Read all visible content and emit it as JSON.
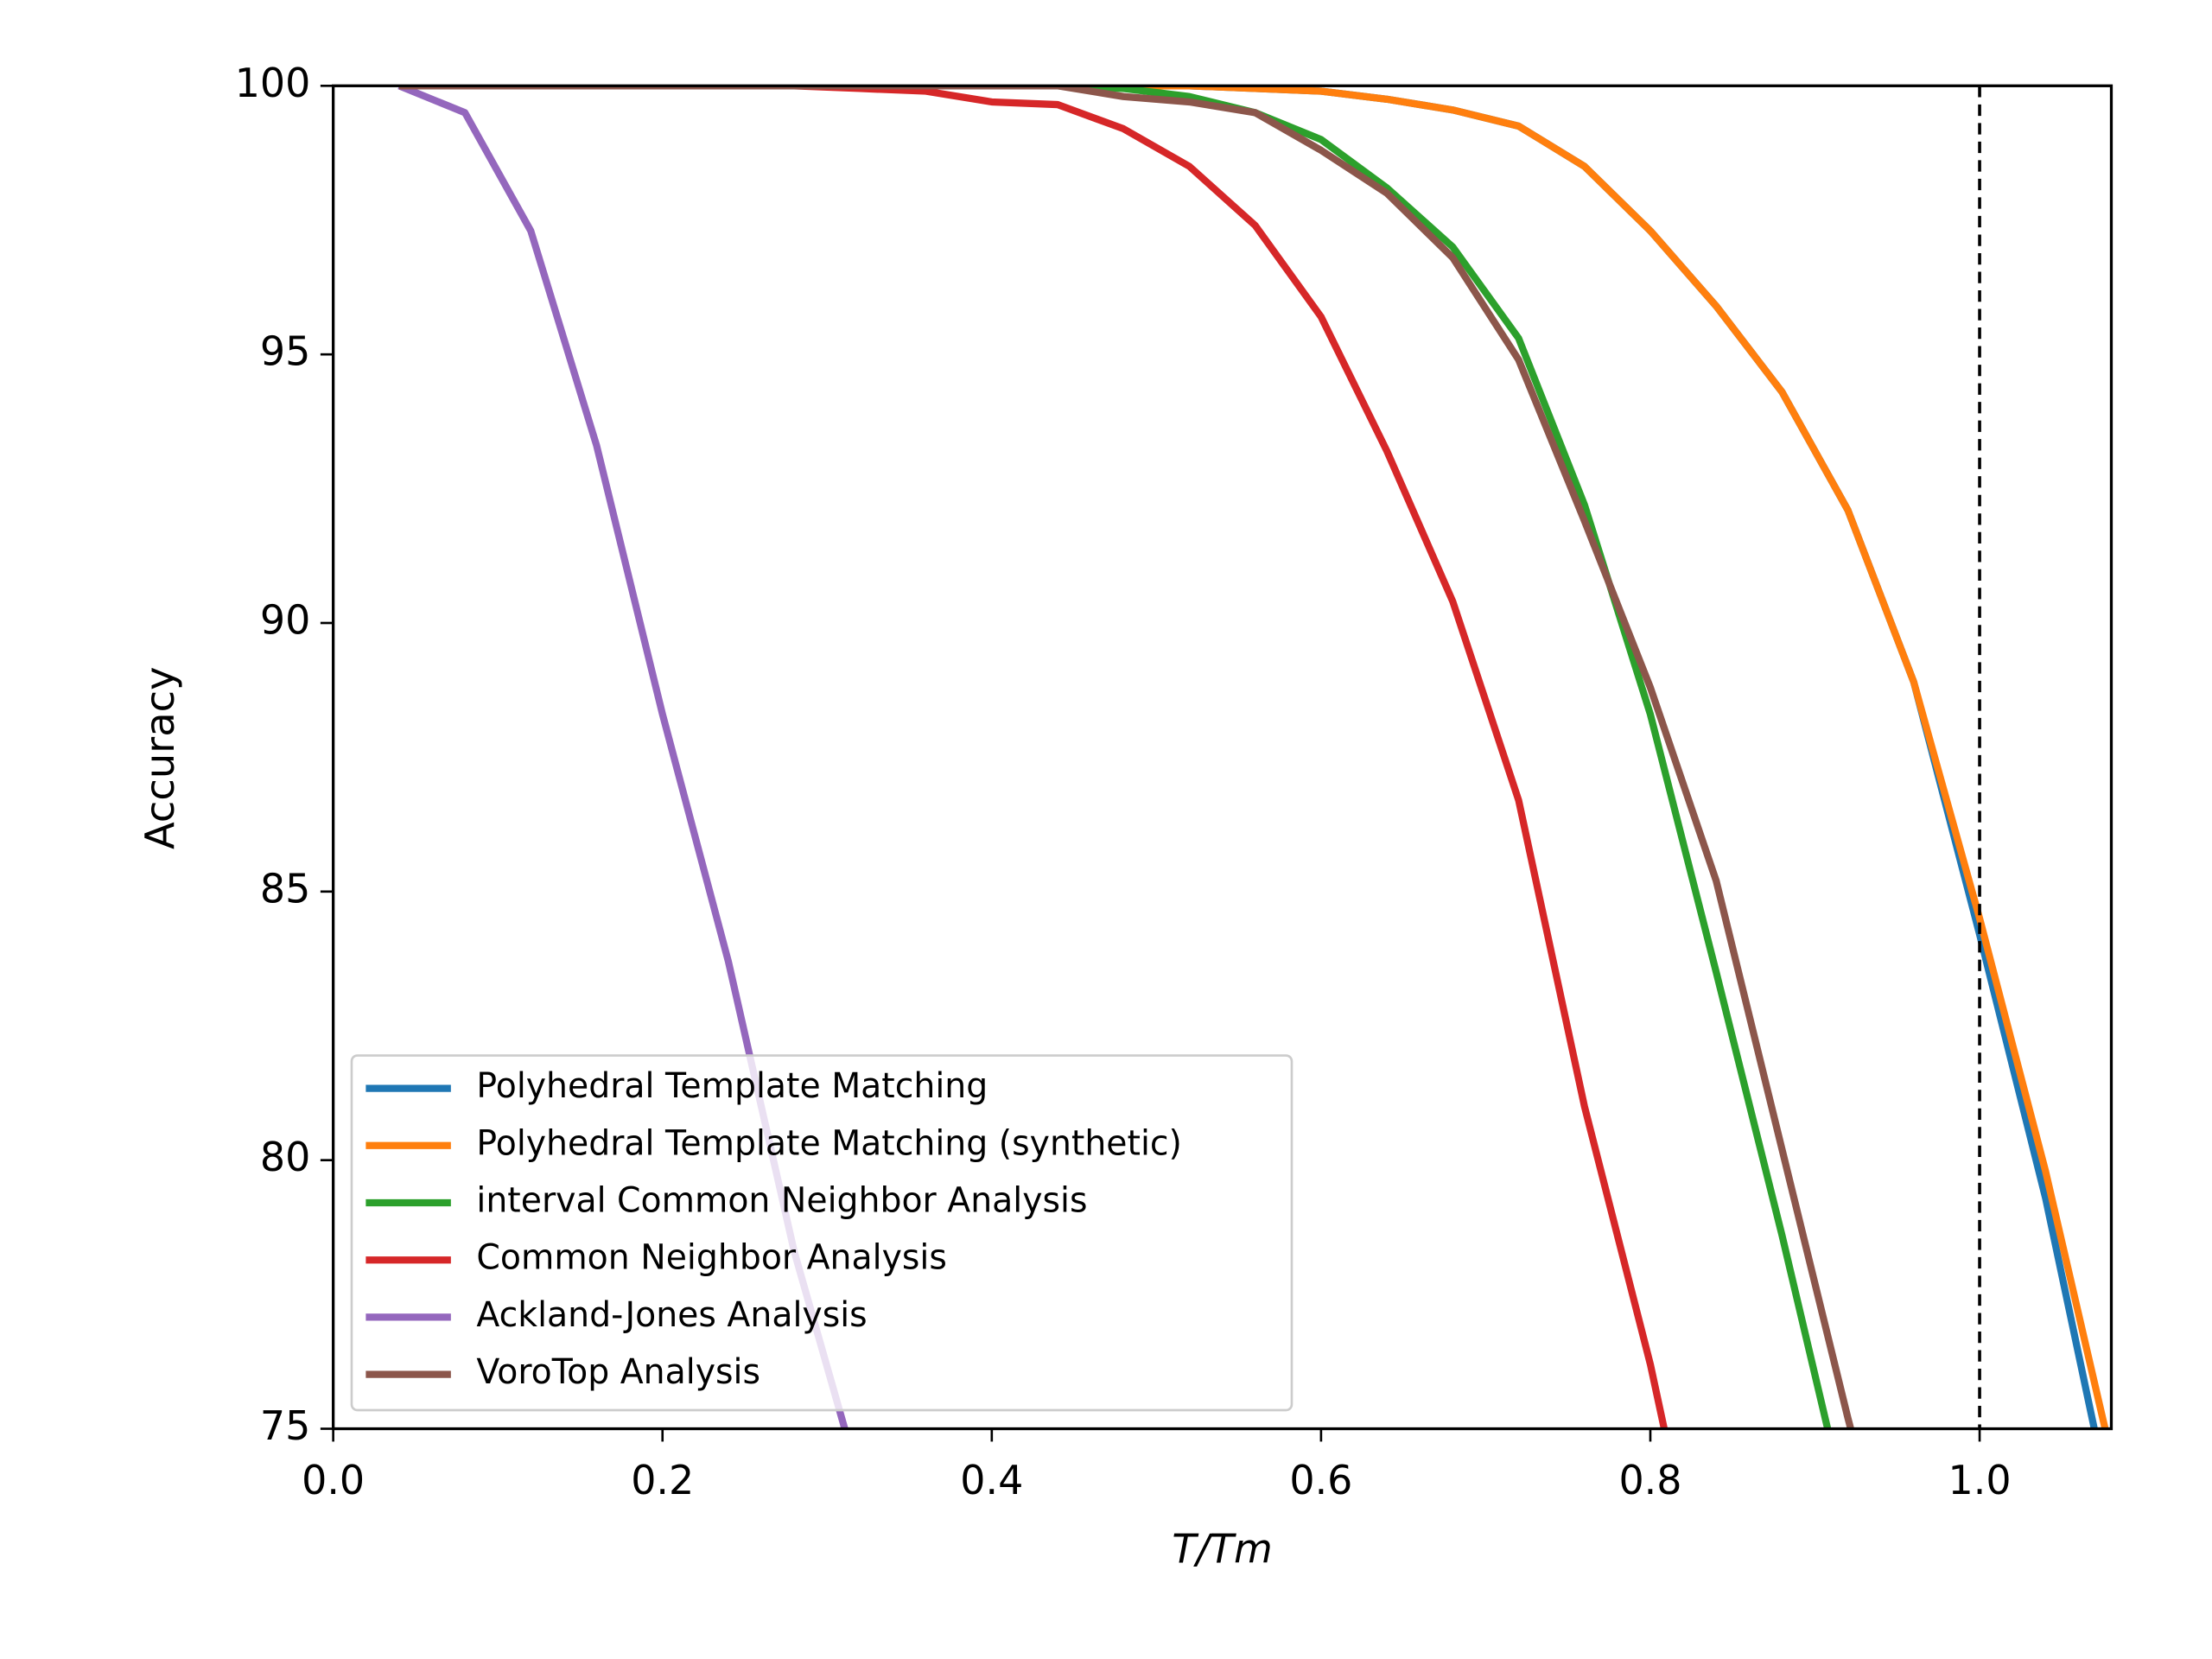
{
  "chart_data": {
    "type": "line",
    "x_label": "T/Tm",
    "y_label": "Accuracy",
    "x": [
      0.04,
      0.08,
      0.12,
      0.16,
      0.2,
      0.24,
      0.28,
      0.32,
      0.36,
      0.4,
      0.44,
      0.48,
      0.52,
      0.56,
      0.6,
      0.64,
      0.68,
      0.72,
      0.76,
      0.8,
      0.84,
      0.88,
      0.92,
      0.96,
      1.0,
      1.04,
      1.08
    ],
    "series": [
      {
        "name": "Polyhedral Template Matching",
        "color": "#1f77b4",
        "values": [
          100,
          100,
          100,
          100,
          100,
          100,
          100,
          100,
          100,
          100,
          100,
          100,
          100,
          99.95,
          99.9,
          99.75,
          99.55,
          99.25,
          98.5,
          97.3,
          95.9,
          94.3,
          92.1,
          88.9,
          84.2,
          79.3,
          73.5
        ]
      },
      {
        "name": "Polyhedral Template Matching (synthetic)",
        "color": "#ff7f0e",
        "values": [
          100,
          100,
          100,
          100,
          100,
          100,
          100,
          100,
          100,
          100,
          100,
          100,
          100,
          99.95,
          99.9,
          99.75,
          99.55,
          99.25,
          98.5,
          97.3,
          95.9,
          94.3,
          92.1,
          88.9,
          84.5,
          79.8,
          74.5
        ]
      },
      {
        "name": "interval Common Neighbor Analysis",
        "color": "#2ca02c",
        "values": [
          100,
          100,
          100,
          100,
          100,
          100,
          100,
          100,
          100,
          100,
          100,
          99.95,
          99.8,
          99.5,
          99.0,
          98.1,
          97.0,
          95.3,
          92.2,
          88.3,
          83.5,
          78.6,
          73.4,
          null,
          null,
          null,
          null
        ]
      },
      {
        "name": "Common Neighbor Analysis",
        "color": "#d62728",
        "values": [
          100,
          100,
          100,
          100,
          100,
          100,
          100,
          99.95,
          99.9,
          99.7,
          99.65,
          99.2,
          98.5,
          97.4,
          95.7,
          93.2,
          90.4,
          86.7,
          81.0,
          76.2,
          70.5,
          null,
          null,
          null,
          null,
          null,
          null
        ]
      },
      {
        "name": "Ackland-Jones Analysis",
        "color": "#9467bd",
        "values": [
          100,
          99.5,
          97.3,
          93.3,
          88.3,
          83.7,
          78.3,
          74.0,
          null,
          null,
          null,
          null,
          null,
          null,
          null,
          null,
          null,
          null,
          null,
          null,
          null,
          null,
          null,
          null,
          null,
          null,
          null
        ]
      },
      {
        "name": "VoroTop Analysis",
        "color": "#8c564b",
        "values": [
          100,
          100,
          100,
          100,
          100,
          100,
          100,
          100,
          100,
          100,
          100,
          99.8,
          99.7,
          99.5,
          98.8,
          98.0,
          96.8,
          94.9,
          91.9,
          88.8,
          85.2,
          80.2,
          75.2,
          70.5,
          null,
          null,
          null
        ]
      }
    ],
    "xlim": [
      0,
      1.08
    ],
    "ylim": [
      75,
      100
    ],
    "xticks": [
      {
        "value": 0,
        "label": "0.0"
      },
      0.2,
      0.4,
      0.6,
      0.8,
      {
        "value": 1,
        "label": "1.0"
      }
    ],
    "yticks": [
      75,
      80,
      85,
      90,
      95,
      100
    ],
    "vlines": [
      1.0
    ],
    "legend": "lower left",
    "grid": false
  }
}
